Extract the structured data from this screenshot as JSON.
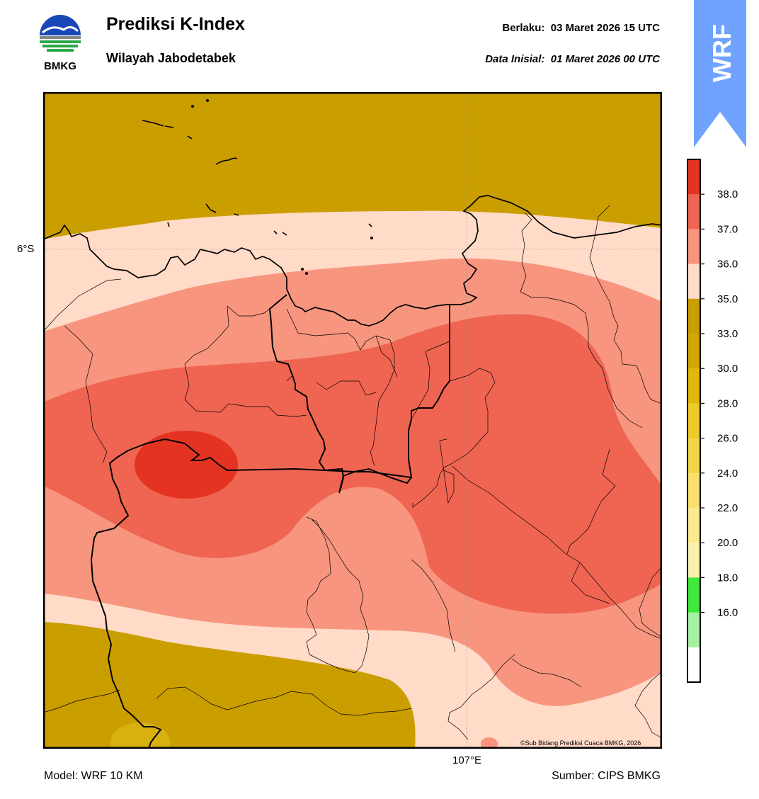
{
  "header": {
    "title": "Prediksi K-Index",
    "region": "Wilayah Jabodetabek",
    "valid_label": "Berlaku:",
    "valid_value": "03 Maret 2026 15 UTC",
    "init_label": "Data Inisial:",
    "init_value": "01 Maret 2026 00 UTC"
  },
  "logo": {
    "text": "BMKG",
    "icon": "bmkg-logo-icon"
  },
  "badge": {
    "text": "WRF",
    "color": "#6fa3ff"
  },
  "map": {
    "lat_label": "6°S",
    "lon_label": "107°E",
    "copyright": "©Sub Bidang Prediksi Cuaca BMKG, 2026",
    "colors": {
      "below_33": "#cb9e00",
      "band_33_35": "#ffdbc8",
      "band_35_36": "#f8957f",
      "band_36_37": "#ef6552",
      "band_37_38": "#e53322",
      "low_pocket": "#d8b010"
    }
  },
  "colorbar": {
    "ticks": [
      "38.0",
      "37.0",
      "36.0",
      "35.0",
      "33.0",
      "30.0",
      "28.0",
      "26.0",
      "24.0",
      "22.0",
      "20.0",
      "18.0",
      "16.0"
    ],
    "colors_top_to_bottom": [
      "#e53322",
      "#ef6552",
      "#f8957f",
      "#ffdbc8",
      "#cb9e00",
      "#d3a604",
      "#e2b60a",
      "#edca28",
      "#f3d448",
      "#f9df6c",
      "#fbe98e",
      "#fcf0ad",
      "#3ee93b",
      "#a5f0a1",
      "#ffffff"
    ]
  },
  "footer": {
    "model": "Model: WRF 10 KM",
    "source": "Sumber: CIPS BMKG"
  }
}
